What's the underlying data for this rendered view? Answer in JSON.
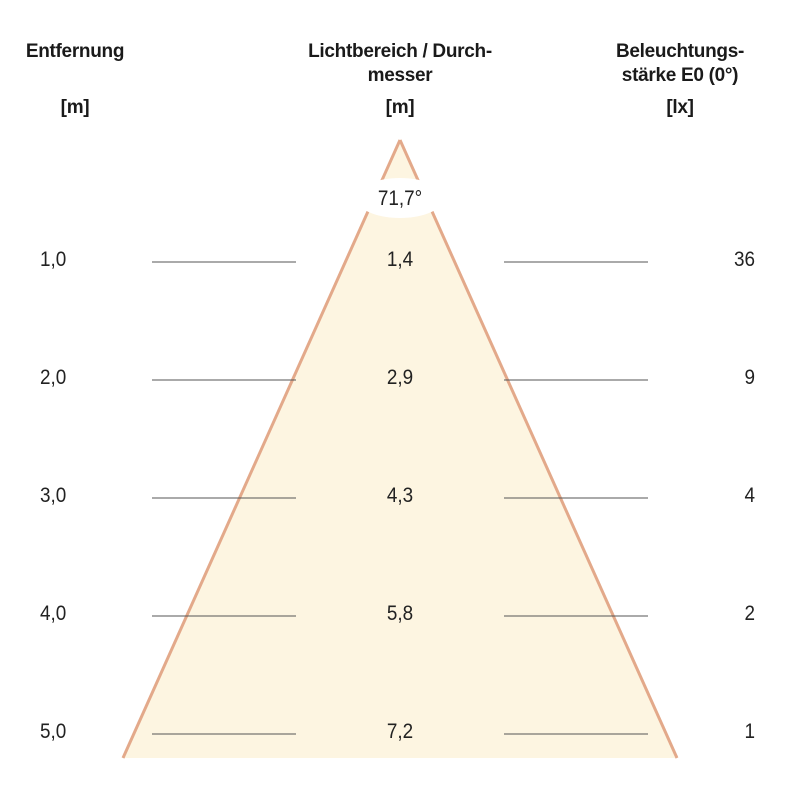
{
  "headers": {
    "distance": {
      "title": "Entfernung",
      "unit": "[m]"
    },
    "diameter": {
      "title_line1": "Lichtbereich / Durch-",
      "title_line2": "messer",
      "unit": "[m]"
    },
    "illuminance": {
      "title_line1": "Beleuchtungs-",
      "title_line2": "stärke E0 (0°)",
      "unit": "[lx]"
    }
  },
  "beam_angle": "71,7°",
  "rows": [
    {
      "distance": "1,0",
      "diameter": "1,4",
      "illuminance": "36"
    },
    {
      "distance": "2,0",
      "diameter": "2,9",
      "illuminance": "9"
    },
    {
      "distance": "3,0",
      "diameter": "4,3",
      "illuminance": "4"
    },
    {
      "distance": "4,0",
      "diameter": "5,8",
      "illuminance": "2"
    },
    {
      "distance": "5,0",
      "diameter": "7,2",
      "illuminance": "1"
    }
  ],
  "colors": {
    "cone_fill": "#fdf5e1",
    "cone_edge": "#e3a98a",
    "rule": "#555555"
  }
}
